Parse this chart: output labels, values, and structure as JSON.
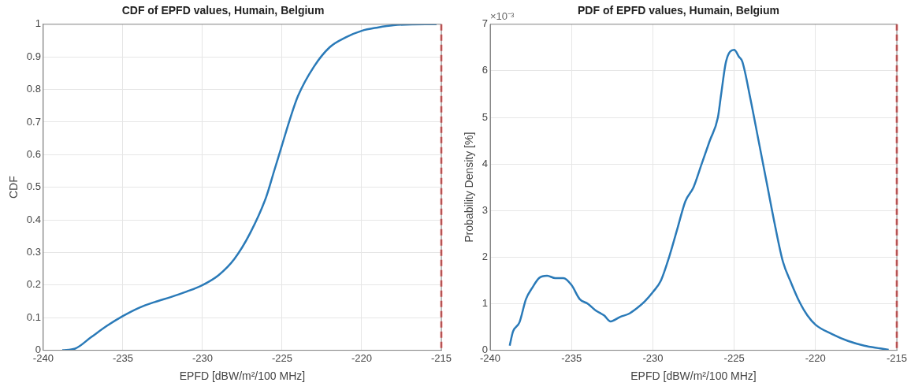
{
  "chart_data": [
    {
      "type": "line",
      "title": "CDF of EPFD values, Humain, Belgium",
      "xlabel": "EPFD [dBW/m²/100 MHz]",
      "ylabel": "CDF",
      "xlim": [
        -240,
        -215
      ],
      "xticks": [
        -240,
        -235,
        -230,
        -225,
        -220,
        -215
      ],
      "ylim": [
        0,
        1
      ],
      "yticks": [
        0,
        0.1,
        0.2,
        0.3,
        0.4,
        0.5,
        0.6,
        0.7,
        0.8,
        0.9,
        1
      ],
      "grid": true,
      "legend": false,
      "marker": "none",
      "series": [
        {
          "color": "#2a7ab8",
          "x": [
            -238.8,
            -238,
            -237,
            -236,
            -235,
            -234,
            -233,
            -232,
            -231,
            -230,
            -229,
            -228,
            -227,
            -226,
            -225.5,
            -225,
            -224.5,
            -224,
            -223,
            -222,
            -221,
            -220,
            -219,
            -218,
            -216,
            -215.3
          ],
          "values": [
            0,
            0.005,
            0.04,
            0.075,
            0.105,
            0.13,
            0.148,
            0.163,
            0.18,
            0.2,
            0.23,
            0.28,
            0.36,
            0.47,
            0.55,
            0.63,
            0.71,
            0.78,
            0.87,
            0.93,
            0.96,
            0.98,
            0.99,
            0.997,
            1,
            1
          ]
        }
      ],
      "ref_lines": [
        {
          "axis": "x",
          "value": -215,
          "color": "#e02020",
          "line_style": "dashed"
        }
      ]
    },
    {
      "type": "line",
      "title": "PDF of EPFD values, Humain, Belgium",
      "xlabel": "EPFD [dBW/m²/100 MHz]",
      "ylabel": "Probability Density [%]",
      "xlim": [
        -240,
        -215
      ],
      "xticks": [
        -240,
        -235,
        -230,
        -225,
        -220,
        -215
      ],
      "ylim": [
        0,
        7
      ],
      "yticks": [
        0,
        1,
        2,
        3,
        4,
        5,
        6,
        7
      ],
      "grid": true,
      "legend": false,
      "marker": "none",
      "annotations": [
        "×10⁻³"
      ],
      "series": [
        {
          "color": "#2a7ab8",
          "x": [
            -238.8,
            -238.6,
            -238.2,
            -237.8,
            -237.4,
            -237,
            -236.5,
            -236,
            -235.5,
            -235,
            -234.5,
            -234,
            -233.5,
            -233,
            -232.6,
            -232,
            -231.5,
            -231,
            -230.5,
            -230,
            -229.5,
            -229,
            -228.5,
            -228,
            -227.5,
            -227,
            -226.5,
            -226,
            -225.8,
            -225.5,
            -225,
            -224.7,
            -224.5,
            -224,
            -223.5,
            -223,
            -222.5,
            -222,
            -221.5,
            -221,
            -220.5,
            -220,
            -219,
            -218,
            -217,
            -216,
            -215.5
          ],
          "values": [
            0.1,
            0.4,
            0.6,
            1.1,
            1.35,
            1.55,
            1.6,
            1.55,
            1.55,
            1.4,
            1.1,
            1.0,
            0.85,
            0.75,
            0.62,
            0.72,
            0.78,
            0.9,
            1.05,
            1.25,
            1.5,
            2.0,
            2.6,
            3.2,
            3.5,
            4.0,
            4.5,
            5.0,
            5.5,
            6.2,
            6.45,
            6.3,
            6.2,
            5.4,
            4.5,
            3.6,
            2.7,
            1.9,
            1.45,
            1.05,
            0.75,
            0.55,
            0.35,
            0.2,
            0.1,
            0.04,
            0.01
          ]
        }
      ],
      "ref_lines": [
        {
          "axis": "x",
          "value": -215,
          "color": "#e02020",
          "line_style": "dashed"
        }
      ]
    }
  ]
}
